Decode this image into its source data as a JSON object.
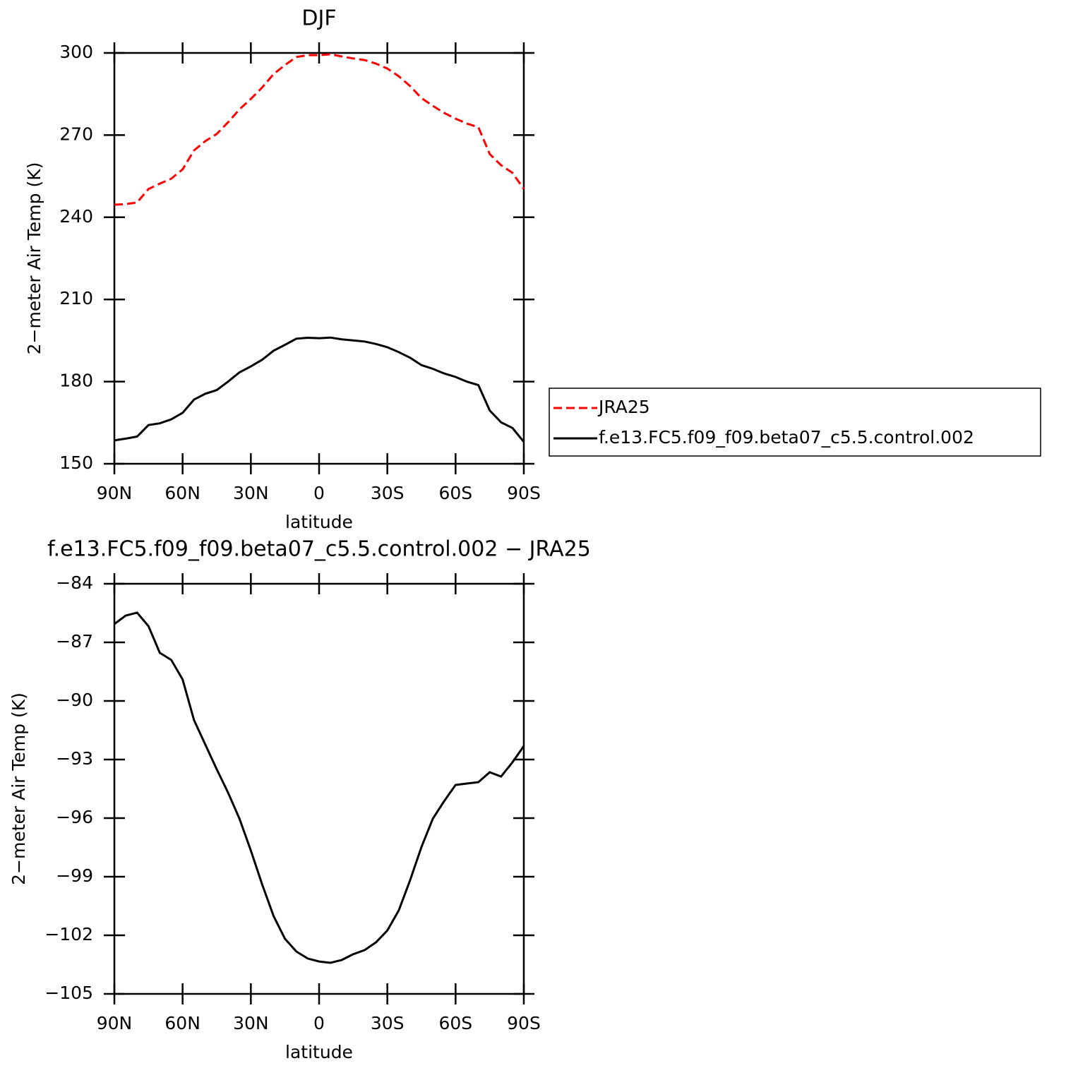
{
  "chart_data": [
    {
      "type": "line",
      "title": "DJF",
      "xlabel": "latitude",
      "ylabel": "2−meter Air Temp (K)",
      "x": [
        90,
        85,
        80,
        75,
        70,
        65,
        60,
        55,
        50,
        45,
        40,
        35,
        30,
        25,
        20,
        15,
        10,
        5,
        0,
        -5,
        -10,
        -15,
        -20,
        -25,
        -30,
        -35,
        -40,
        -45,
        -50,
        -55,
        -60,
        -65,
        -70,
        -75,
        -80,
        -85,
        -90
      ],
      "xlim": [
        90,
        -90
      ],
      "xticks": [
        {
          "value": 90,
          "label": "90N"
        },
        {
          "value": 60,
          "label": "60N"
        },
        {
          "value": 30,
          "label": "30N"
        },
        0,
        {
          "value": -30,
          "label": "30S"
        },
        {
          "value": -60,
          "label": "60S"
        },
        {
          "value": -90,
          "label": "90S"
        }
      ],
      "ylim": [
        150,
        300
      ],
      "yticks": [
        150,
        180,
        210,
        240,
        270,
        300
      ],
      "legend": "right",
      "series": [
        {
          "name": "JRA25",
          "color": "#ff0000",
          "linestyle": "dashed",
          "values": [
            244.6,
            244.8,
            245.4,
            250.3,
            252.3,
            254.1,
            257.5,
            264.4,
            267.8,
            270.4,
            274.7,
            279.4,
            283.2,
            287.4,
            292.3,
            295.6,
            298.5,
            299.2,
            299.2,
            299.5,
            298.7,
            298,
            297.4,
            296.1,
            294.3,
            291.5,
            287.9,
            283.5,
            280.7,
            278.1,
            276,
            274.2,
            272.9,
            263.1,
            259,
            256.2,
            250.3
          ]
        },
        {
          "name": "f.e13.FC5.f09_f09.beta07_c5.5.control.002",
          "color": "#000000",
          "linestyle": "solid",
          "values": [
            158.54,
            159.17,
            159.92,
            164.13,
            164.76,
            166.2,
            168.6,
            173.42,
            175.56,
            176.9,
            180,
            183.37,
            185.54,
            188,
            191.28,
            193.42,
            195.67,
            196.01,
            195.86,
            196.09,
            195.44,
            195.03,
            194.64,
            193.74,
            192.55,
            190.77,
            188.72,
            186.02,
            184.67,
            182.97,
            181.7,
            179.97,
            178.74,
            169.45,
            165.13,
            163.06,
            157.99
          ]
        }
      ]
    },
    {
      "type": "line",
      "title": "f.e13.FC5.f09_f09.beta07_c5.5.control.002 − JRA25",
      "xlabel": "latitude",
      "ylabel": "2−meter Air Temp (K)",
      "x": [
        90,
        85,
        80,
        75,
        70,
        65,
        60,
        55,
        50,
        45,
        40,
        35,
        30,
        25,
        20,
        15,
        10,
        5,
        0,
        -5,
        -10,
        -15,
        -20,
        -25,
        -30,
        -35,
        -40,
        -45,
        -50,
        -55,
        -60,
        -65,
        -70,
        -75,
        -80,
        -85,
        -90
      ],
      "xlim": [
        90,
        -90
      ],
      "xticks": [
        {
          "value": 90,
          "label": "90N"
        },
        {
          "value": 60,
          "label": "60N"
        },
        {
          "value": 30,
          "label": "30N"
        },
        0,
        {
          "value": -30,
          "label": "30S"
        },
        {
          "value": -60,
          "label": "60S"
        },
        {
          "value": -90,
          "label": "90S"
        }
      ],
      "ylim": [
        -105,
        -84
      ],
      "yticks": [
        {
          "value": -105,
          "label": "−105"
        },
        {
          "value": -102,
          "label": "−102"
        },
        {
          "value": -99,
          "label": "−99"
        },
        {
          "value": -96,
          "label": "−96"
        },
        {
          "value": -93,
          "label": "−93"
        },
        {
          "value": -90,
          "label": "−90"
        },
        {
          "value": -87,
          "label": "−87"
        },
        {
          "value": -84,
          "label": "−84"
        }
      ],
      "color": "#000000",
      "values": [
        -86.06,
        -85.63,
        -85.48,
        -86.17,
        -87.54,
        -87.9,
        -88.9,
        -90.98,
        -92.24,
        -93.5,
        -94.7,
        -96.03,
        -97.66,
        -99.4,
        -101.02,
        -102.18,
        -102.83,
        -103.19,
        -103.34,
        -103.41,
        -103.26,
        -102.97,
        -102.76,
        -102.36,
        -101.75,
        -100.73,
        -99.18,
        -97.48,
        -96.03,
        -95.13,
        -94.3,
        -94.23,
        -94.16,
        -93.65,
        -93.87,
        -93.14,
        -92.31
      ]
    }
  ]
}
